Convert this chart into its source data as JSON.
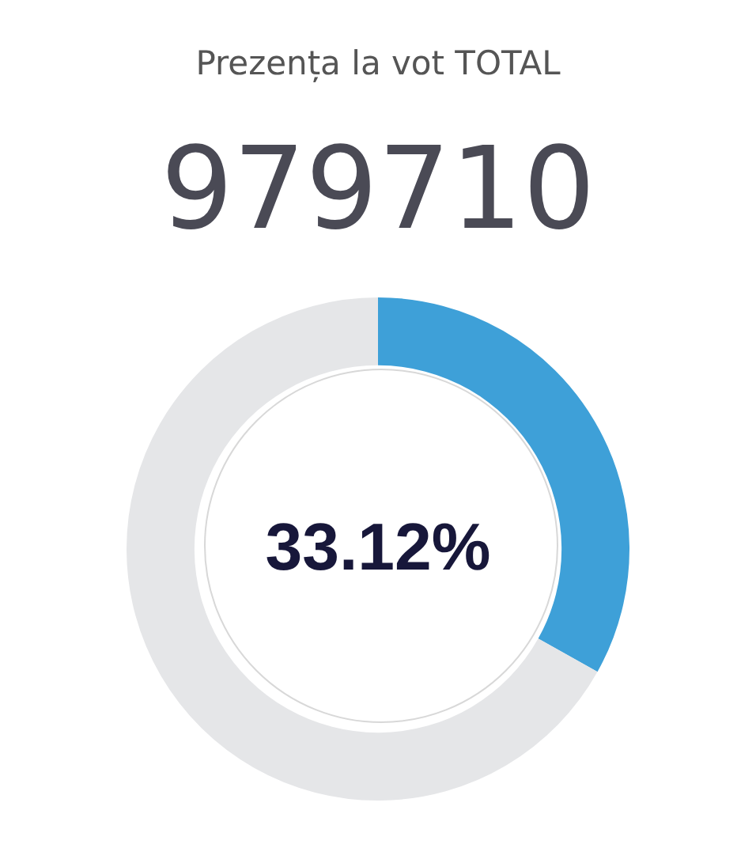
{
  "chart_data": {
    "type": "donut",
    "title": "Prezența la vot TOTAL",
    "subtitle": "979710",
    "categories": [
      null,
      null
    ],
    "values": [
      33.12,
      66.88
    ],
    "colors": [
      "#3ea0d8",
      "#e5e6e8"
    ],
    "annotations": [
      "33.12%"
    ],
    "legend": false
  }
}
